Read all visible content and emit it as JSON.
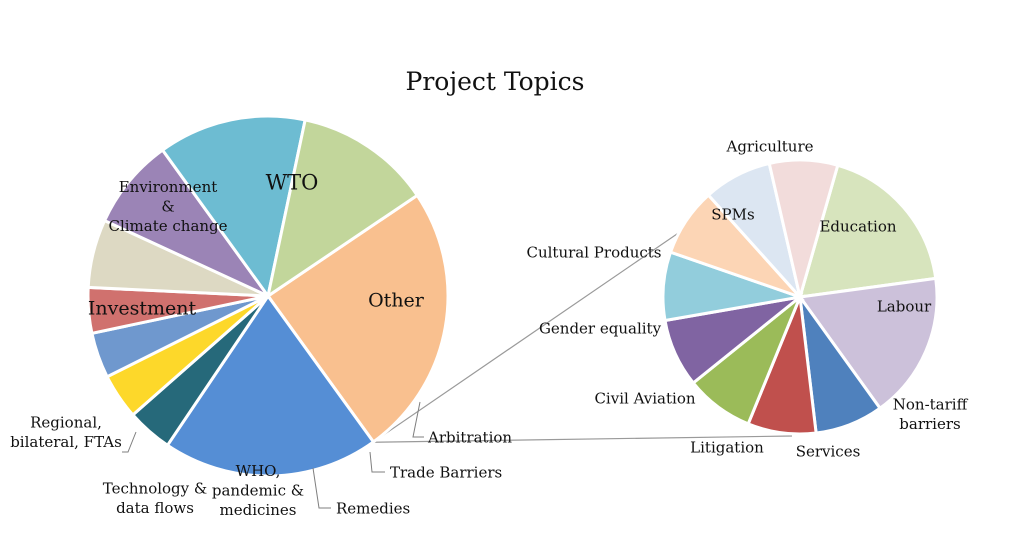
{
  "title": "Project Topics",
  "chart_data": {
    "type": "pie-of-pie",
    "title": "Project Topics",
    "main": {
      "slices": [
        {
          "label": [
            "WTO"
          ],
          "value": 24,
          "color": "#F9C08F"
        },
        {
          "label": [
            "Other"
          ],
          "value": 19,
          "color": "#558ED5"
        },
        {
          "label": [
            "Arbitration"
          ],
          "value": 4,
          "color": "#26697A"
        },
        {
          "label": [
            "Trade Barriers"
          ],
          "value": 4,
          "color": "#FDD82A"
        },
        {
          "label": [
            "Remedies"
          ],
          "value": 4,
          "color": "#6F98CE"
        },
        {
          "label": [
            "WHO,",
            "pandemic &",
            "medicines"
          ],
          "value": 4,
          "color": "#D0716E"
        },
        {
          "label": [
            "Technology &",
            "data flows"
          ],
          "value": 6,
          "color": "#DDD9C3"
        },
        {
          "label": [
            "Regional,",
            "bilateral, FTAs"
          ],
          "value": 8,
          "color": "#9B84B6"
        },
        {
          "label": [
            "Investment"
          ],
          "value": 13,
          "color": "#6DBCD2"
        },
        {
          "label": [
            "Environment",
            "&",
            "Climate change"
          ],
          "value": 12,
          "color": "#C2D69B"
        }
      ]
    },
    "secondary": {
      "slices": [
        {
          "label": [
            "Education"
          ],
          "value": 16,
          "color": "#D7E4BD"
        },
        {
          "label": [
            "Labour"
          ],
          "value": 15,
          "color": "#CCC1DA"
        },
        {
          "label": [
            "Non-tariff",
            "barriers"
          ],
          "value": 7,
          "color": "#4F81BD"
        },
        {
          "label": [
            "Services"
          ],
          "value": 7,
          "color": "#C0504D"
        },
        {
          "label": [
            "Litigation"
          ],
          "value": 7,
          "color": "#9BBB59"
        },
        {
          "label": [
            "Civil Aviation"
          ],
          "value": 7,
          "color": "#8064A2"
        },
        {
          "label": [
            "Gender equality"
          ],
          "value": 7,
          "color": "#92CDDC"
        },
        {
          "label": [
            "Cultural Products"
          ],
          "value": 7,
          "color": "#FCD5B5"
        },
        {
          "label": [
            "SPMs"
          ],
          "value": 7,
          "color": "#DCE6F2"
        },
        {
          "label": [
            "Agriculture"
          ],
          "value": 7,
          "color": "#F2DCDB"
        }
      ]
    }
  }
}
